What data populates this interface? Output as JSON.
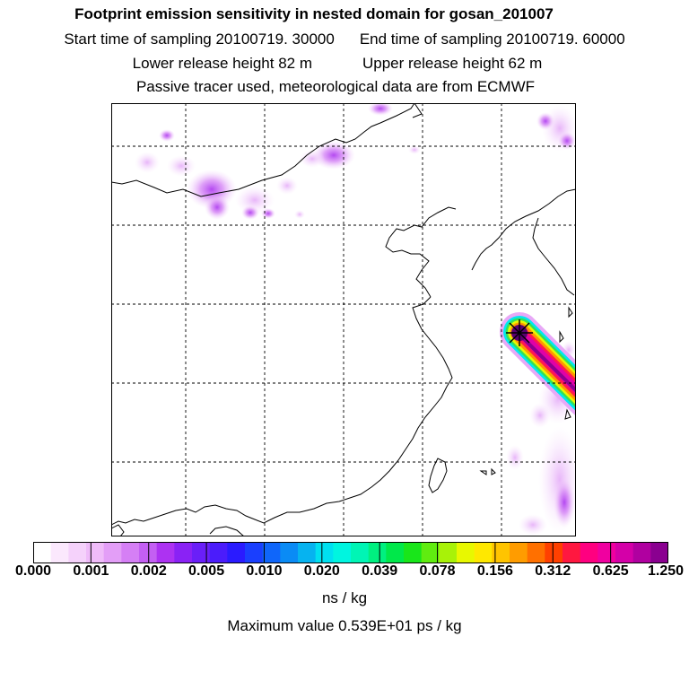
{
  "header": {
    "title": "Footprint emission sensitivity in nested domain for gosan_201007",
    "start_label": "Start time of sampling 20100719. 30000",
    "end_label": "End time of sampling 20100719. 60000",
    "lower_label": "Lower release height   82 m",
    "upper_label": "Upper release height   62 m",
    "tracer_label": "Passive tracer used, meteorological data are from ECMWF"
  },
  "colorbar": {
    "tick_labels": [
      "0.000",
      "0.001",
      "0.002",
      "0.005",
      "0.010",
      "0.020",
      "0.039",
      "0.078",
      "0.156",
      "0.312",
      "0.625",
      "1.250"
    ],
    "colors": [
      "#ffffff",
      "#fbe8fd",
      "#f5d2fb",
      "#efbbf9",
      "#e39ef7",
      "#d57ff5",
      "#c45ff3",
      "#ad32f2",
      "#8a22f5",
      "#6a1ff8",
      "#4b1cfb",
      "#2a1bff",
      "#1a3ffe",
      "#0f66fa",
      "#0a8bf5",
      "#06b3f0",
      "#00e0f0",
      "#00f5e0",
      "#00f5b5",
      "#00f080",
      "#00e84a",
      "#19e61a",
      "#60ec10",
      "#a8f208",
      "#e8f800",
      "#ffe800",
      "#ffc400",
      "#ff9c00",
      "#ff7000",
      "#ff4000",
      "#ff1840",
      "#ff0080",
      "#f000a0",
      "#d400a8",
      "#b000a0",
      "#8a0090"
    ],
    "units": "ns / kg"
  },
  "footer": {
    "max_value": "Maximum value  0.539E+01 ps / kg"
  }
}
